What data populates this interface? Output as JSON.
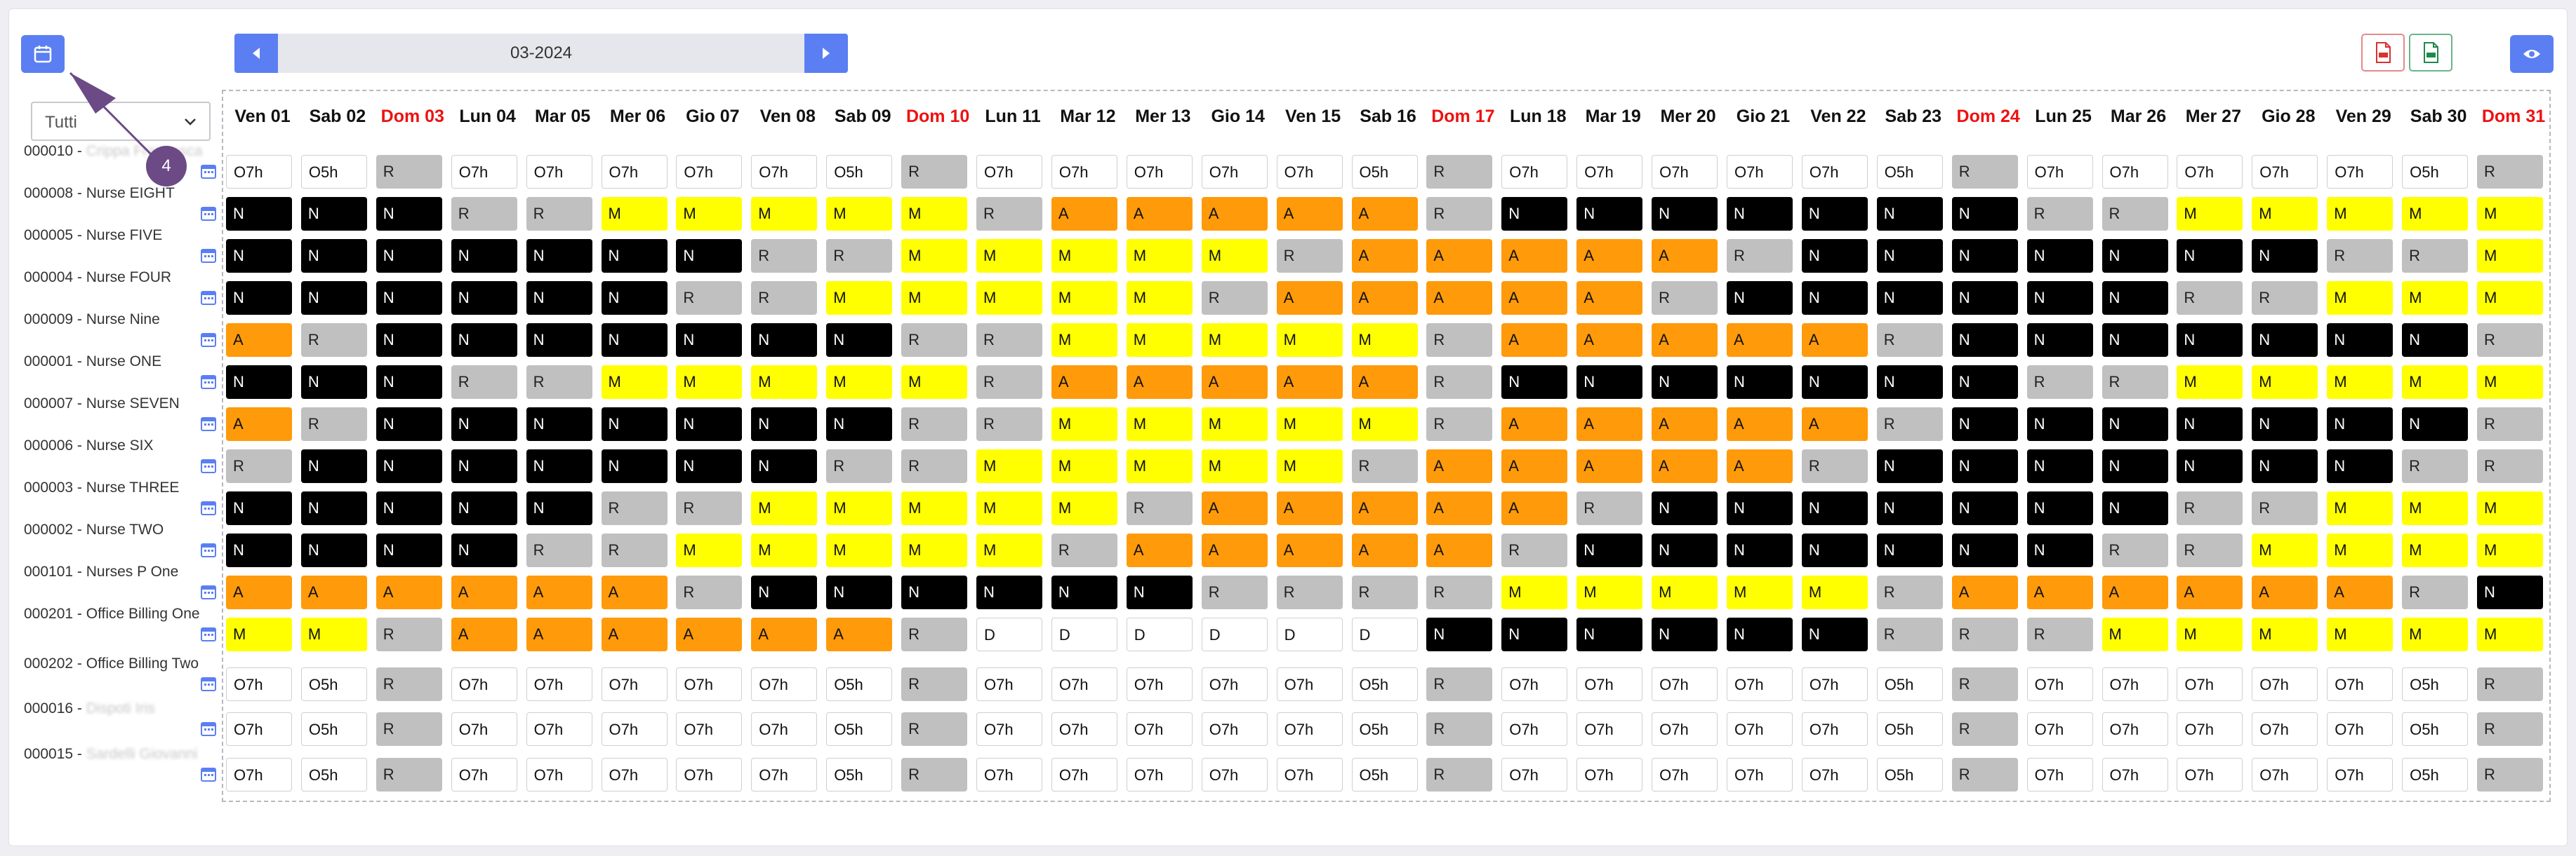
{
  "toolbar": {
    "month": "03-2024",
    "calendar_icon": "calendar-icon",
    "prev_icon": "caret-left-icon",
    "next_icon": "caret-right-icon",
    "pdf_icon": "file-pdf-icon",
    "xls_icon": "file-xls-icon",
    "eye_icon": "eye-icon"
  },
  "filter": {
    "selected": "Tutti"
  },
  "tour_step": "4",
  "colors": {
    "accent": "#5b7ff2",
    "night": "#000000",
    "rest": "#c0c0c0",
    "morning": "#ffff00",
    "afternoon": "#ff9a0a",
    "sunday": "#ee1111",
    "badge": "#6b4a86"
  },
  "days": [
    {
      "label": "Ven 01",
      "sun": false
    },
    {
      "label": "Sab 02",
      "sun": false
    },
    {
      "label": "Dom 03",
      "sun": true
    },
    {
      "label": "Lun 04",
      "sun": false
    },
    {
      "label": "Mar 05",
      "sun": false
    },
    {
      "label": "Mer 06",
      "sun": false
    },
    {
      "label": "Gio 07",
      "sun": false
    },
    {
      "label": "Ven 08",
      "sun": false
    },
    {
      "label": "Sab 09",
      "sun": false
    },
    {
      "label": "Dom 10",
      "sun": true
    },
    {
      "label": "Lun 11",
      "sun": false
    },
    {
      "label": "Mar 12",
      "sun": false
    },
    {
      "label": "Mer 13",
      "sun": false
    },
    {
      "label": "Gio 14",
      "sun": false
    },
    {
      "label": "Ven 15",
      "sun": false
    },
    {
      "label": "Sab 16",
      "sun": false
    },
    {
      "label": "Dom 17",
      "sun": true
    },
    {
      "label": "Lun 18",
      "sun": false
    },
    {
      "label": "Mar 19",
      "sun": false
    },
    {
      "label": "Mer 20",
      "sun": false
    },
    {
      "label": "Gio 21",
      "sun": false
    },
    {
      "label": "Ven 22",
      "sun": false
    },
    {
      "label": "Sab 23",
      "sun": false
    },
    {
      "label": "Dom 24",
      "sun": true
    },
    {
      "label": "Lun 25",
      "sun": false
    },
    {
      "label": "Mar 26",
      "sun": false
    },
    {
      "label": "Mer 27",
      "sun": false
    },
    {
      "label": "Gio 28",
      "sun": false
    },
    {
      "label": "Ven 29",
      "sun": false
    },
    {
      "label": "Sab 30",
      "sun": false
    },
    {
      "label": "Dom 31",
      "sun": true
    }
  ],
  "rows": [
    {
      "code": "000010 - ",
      "name": "Crippa Francesca",
      "blurred": true,
      "shifts": "O7h O5h R O7h O7h O7h O7h O7h O5h R O7h O7h O7h O7h O7h O5h R O7h O7h O7h O7h O7h O5h R O7h O7h O7h O7h O7h O5h R"
    },
    {
      "code": "000008 - ",
      "name": "Nurse EIGHT",
      "blurred": false,
      "shifts": "N N N R R M M M M M R A A A A A R N N N N N N N R R M M M M M"
    },
    {
      "code": "000005 - ",
      "name": "Nurse FIVE",
      "blurred": false,
      "shifts": "N N N N N N N R R M M M M M R A A A A A R N N N N N N N R R M"
    },
    {
      "code": "000004 - ",
      "name": "Nurse FOUR",
      "blurred": false,
      "shifts": "N N N N N N R R M M M M M R A A A A A R N N N N N N R R M M M"
    },
    {
      "code": "000009 - ",
      "name": "Nurse Nine",
      "blurred": false,
      "shifts": "A R N N N N N N N R R M M M M M R A A A A A R N N N N N N N R"
    },
    {
      "code": "000001 - ",
      "name": "Nurse ONE",
      "blurred": false,
      "shifts": "N N N R R M M M M M R A A A A A R N N N N N N N R R M M M M M"
    },
    {
      "code": "000007 - ",
      "name": "Nurse SEVEN",
      "blurred": false,
      "shifts": "A R N N N N N N N R R M M M M M R A A A A A R N N N N N N N R"
    },
    {
      "code": "000006 - ",
      "name": "Nurse SIX",
      "blurred": false,
      "shifts": "R N N N N N N N R R M M M M M R A A A A A R N N N N N N N R R"
    },
    {
      "code": "000003 - ",
      "name": "Nurse THREE",
      "blurred": false,
      "shifts": "N N N N N R R M M M M M R A A A A A R N N N N N N N R R M M M"
    },
    {
      "code": "000002 - ",
      "name": "Nurse TWO",
      "blurred": false,
      "shifts": "N N N N R R M M M M M R A A A A A R N N N N N N N R R M M M M"
    },
    {
      "code": "000101 - ",
      "name": "Nurses P One",
      "blurred": false,
      "shifts": "A A A A A A R N N N N N N R R R R M M M M M R A A A A A A R N"
    },
    {
      "code": "000201 - ",
      "name": "Office Billing One",
      "blurred": false,
      "shifts": "M M R A A A A A A R D D D D D D N N N N N N R R R M M M M M M"
    },
    {
      "code": "000202 - ",
      "name": "Office Billing Two",
      "blurred": false,
      "shifts": "O7h O5h R O7h O7h O7h O7h O7h O5h R O7h O7h O7h O7h O7h O5h R O7h O7h O7h O7h O7h O5h R O7h O7h O7h O7h O7h O5h R"
    },
    {
      "code": "000016 - ",
      "name": "Dispoti Iris",
      "blurred": true,
      "shifts": "O7h O5h R O7h O7h O7h O7h O7h O5h R O7h O7h O7h O7h O7h O5h R O7h O7h O7h O7h O7h O5h R O7h O7h O7h O7h O7h O5h R"
    },
    {
      "code": "000015 - ",
      "name": "Sardelli Giovanni",
      "blurred": true,
      "shifts": "O7h O5h R O7h O7h O7h O7h O7h O5h R O7h O7h O7h O7h O7h O5h R O7h O7h O7h O7h O7h O5h R O7h O7h O7h O7h O7h O5h R"
    }
  ]
}
